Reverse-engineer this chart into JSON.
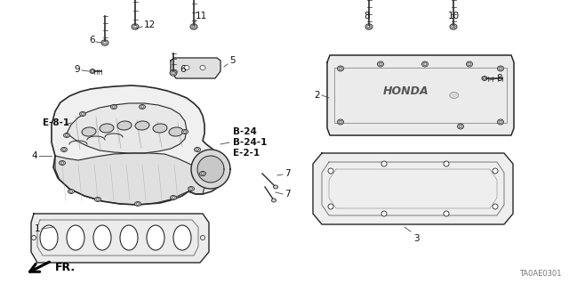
{
  "bg_color": "#ffffff",
  "diagram_code": "TA0AE0301",
  "line_color": "#2a2a2a",
  "label_color": "#111111",
  "bold_labels": [
    "E-8-1",
    "B-24",
    "B-24-1",
    "E-2-1"
  ],
  "part_numbers": [
    "1",
    "2",
    "3",
    "4",
    "5",
    "6",
    "6",
    "7",
    "7",
    "8",
    "8",
    "9",
    "10",
    "11",
    "12"
  ],
  "fr_text": "FR."
}
